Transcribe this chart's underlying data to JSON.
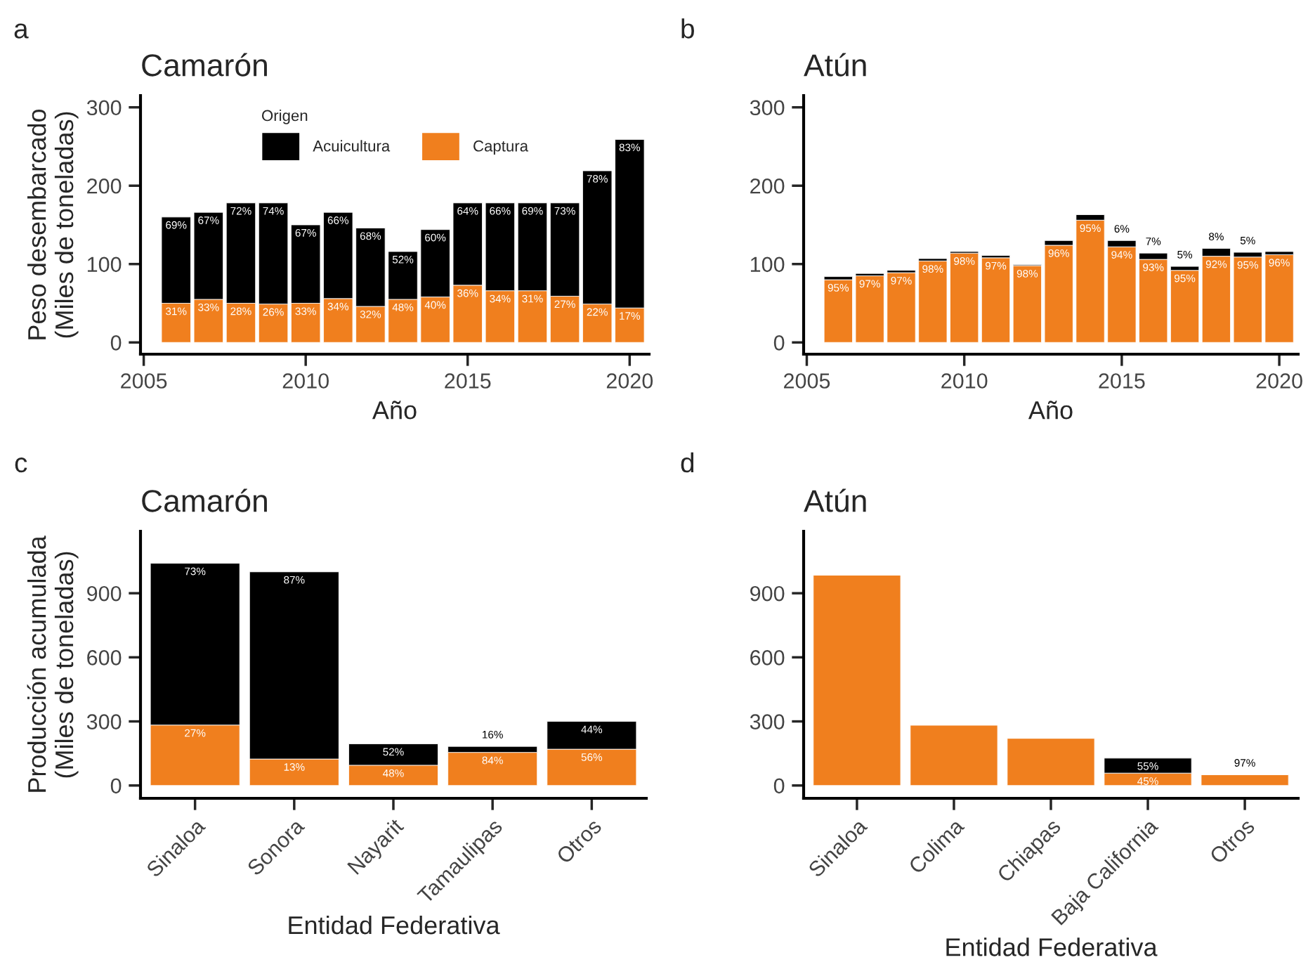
{
  "chart_data": [
    {
      "type": "bar",
      "title": "Camarón",
      "xlabel": "Año",
      "ylabel": "Peso desembarcado\n(Miles de toneladas)",
      "stacked": true,
      "legend": "top",
      "legend_title": "Origen",
      "grid": false,
      "x": [
        2006,
        2007,
        2008,
        2009,
        2010,
        2011,
        2012,
        2013,
        2014,
        2015,
        2016,
        2017,
        2018,
        2019,
        2020
      ],
      "xlim": [
        2004.9,
        2020.6
      ],
      "xticks": [
        2005,
        2010,
        2015,
        2020
      ],
      "ylim": [
        -15,
        315
      ],
      "yticks": [
        0,
        100,
        200,
        300
      ],
      "series": [
        {
          "name": "Captura",
          "color": "#f07f1e",
          "values": [
            50,
            55,
            50,
            49,
            50,
            56,
            46,
            55,
            58,
            73,
            66,
            66,
            59,
            49,
            44
          ]
        },
        {
          "name": "Acuicultura",
          "color": "#000000",
          "values": [
            110,
            111,
            128,
            129,
            100,
            110,
            100,
            61,
            86,
            105,
            112,
            112,
            119,
            170,
            215
          ]
        }
      ],
      "annotations": [
        "a",
        {
          "text": "31%",
          "x": 2006,
          "y": 50
        },
        {
          "text": "33%",
          "x": 2007,
          "y": 55
        },
        {
          "text": "28%",
          "x": 2008,
          "y": 50
        },
        {
          "text": "26%",
          "x": 2009,
          "y": 49
        },
        {
          "text": "33%",
          "x": 2010,
          "y": 50
        },
        {
          "text": "34%",
          "x": 2011,
          "y": 56
        },
        {
          "text": "32%",
          "x": 2012,
          "y": 46
        },
        {
          "text": "48%",
          "x": 2013,
          "y": 55
        },
        {
          "text": "40%",
          "x": 2014,
          "y": 58
        },
        {
          "text": "36%",
          "x": 2015,
          "y": 73
        },
        {
          "text": "34%",
          "x": 2016,
          "y": 66
        },
        {
          "text": "31%",
          "x": 2017,
          "y": 66
        },
        {
          "text": "27%",
          "x": 2018,
          "y": 59
        },
        {
          "text": "22%",
          "x": 2019,
          "y": 49
        },
        {
          "text": "17%",
          "x": 2020,
          "y": 44
        },
        {
          "text": "69%",
          "x": 2006,
          "y": 160
        },
        {
          "text": "67%",
          "x": 2007,
          "y": 166
        },
        {
          "text": "72%",
          "x": 2008,
          "y": 178
        },
        {
          "text": "74%",
          "x": 2009,
          "y": 178
        },
        {
          "text": "67%",
          "x": 2010,
          "y": 150
        },
        {
          "text": "66%",
          "x": 2011,
          "y": 166
        },
        {
          "text": "68%",
          "x": 2012,
          "y": 146
        },
        {
          "text": "52%",
          "x": 2013,
          "y": 116
        },
        {
          "text": "60%",
          "x": 2014,
          "y": 144
        },
        {
          "text": "64%",
          "x": 2015,
          "y": 178
        },
        {
          "text": "66%",
          "x": 2016,
          "y": 178
        },
        {
          "text": "69%",
          "x": 2017,
          "y": 178
        },
        {
          "text": "73%",
          "x": 2018,
          "y": 178
        },
        {
          "text": "78%",
          "x": 2019,
          "y": 219
        },
        {
          "text": "83%",
          "x": 2020,
          "y": 259
        }
      ]
    },
    {
      "type": "bar",
      "title": "Atún",
      "xlabel": "Año",
      "stacked": true,
      "grid": false,
      "x": [
        2006,
        2007,
        2008,
        2009,
        2010,
        2011,
        2012,
        2013,
        2014,
        2015,
        2016,
        2017,
        2018,
        2019,
        2020
      ],
      "xlim": [
        2004.9,
        2020.6
      ],
      "xticks": [
        2005,
        2010,
        2015,
        2020
      ],
      "ylim": [
        -15,
        315
      ],
      "yticks": [
        0,
        100,
        200,
        300
      ],
      "series": [
        {
          "color": "#f07f1e",
          "values": [
            80,
            85,
            89,
            104,
            114,
            108,
            98,
            124,
            156,
            122,
            106,
            92,
            110,
            109,
            112
          ]
        },
        {
          "color": "#000000",
          "values": [
            4,
            3,
            3,
            3,
            2,
            3,
            1,
            6,
            7,
            8,
            8,
            5,
            10,
            6,
            4
          ]
        }
      ],
      "annotations": [
        "b",
        {
          "text": "95%",
          "x": 2006,
          "y": 80
        },
        {
          "text": "97%",
          "x": 2007,
          "y": 85
        },
        {
          "text": "97%",
          "x": 2008,
          "y": 89
        },
        {
          "text": "98%",
          "x": 2009,
          "y": 104
        },
        {
          "text": "98%",
          "x": 2010,
          "y": 114
        },
        {
          "text": "97%",
          "x": 2011,
          "y": 108
        },
        {
          "text": "98%",
          "x": 2012,
          "y": 98
        },
        {
          "text": "96%",
          "x": 2013,
          "y": 124
        },
        {
          "text": "95%",
          "x": 2014,
          "y": 156
        },
        {
          "text": "94%",
          "x": 2015,
          "y": 122
        },
        {
          "text": "93%",
          "x": 2016,
          "y": 106
        },
        {
          "text": "95%",
          "x": 2017,
          "y": 92
        },
        {
          "text": "92%",
          "x": 2018,
          "y": 110
        },
        {
          "text": "95%",
          "x": 2019,
          "y": 109
        },
        {
          "text": "96%",
          "x": 2020,
          "y": 112
        },
        {
          "text": "6%",
          "x": 2015,
          "y": 130
        },
        {
          "text": "7%",
          "x": 2016,
          "y": 114
        },
        {
          "text": "5%",
          "x": 2017,
          "y": 97
        },
        {
          "text": "8%",
          "x": 2018,
          "y": 120
        },
        {
          "text": "5%",
          "x": 2019,
          "y": 115
        }
      ]
    },
    {
      "type": "bar",
      "title": "Camarón",
      "xlabel": "Entidad Federativa",
      "ylabel": "Producción acumulada\n(Miles de toneladas)",
      "stacked": true,
      "grid": false,
      "categories": [
        "Sinaloa",
        "Sonora",
        "Nayarit",
        "Tamaulipas",
        "Otros"
      ],
      "ylim": [
        -60,
        1190
      ],
      "yticks": [
        0,
        300,
        600,
        900
      ],
      "series": [
        {
          "color": "#f07f1e",
          "values": [
            283,
            124,
            95,
            155,
            170
          ]
        },
        {
          "color": "#000000",
          "values": [
            757,
            876,
            100,
            28,
            130
          ]
        }
      ],
      "annotations": [
        "c",
        {
          "text": "27%",
          "x": "Sinaloa",
          "y": 283
        },
        {
          "text": "13%",
          "x": "Sonora",
          "y": 124
        },
        {
          "text": "48%",
          "x": "Nayarit",
          "y": 95
        },
        {
          "text": "84%",
          "x": "Tamaulipas",
          "y": 155
        },
        {
          "text": "56%",
          "x": "Otros",
          "y": 170
        },
        {
          "text": "73%",
          "x": "Sinaloa",
          "y": 1040
        },
        {
          "text": "87%",
          "x": "Sonora",
          "y": 1000
        },
        {
          "text": "52%",
          "x": "Nayarit",
          "y": 195
        },
        {
          "text": "16%",
          "x": "Tamaulipas",
          "y": 183
        },
        {
          "text": "44%",
          "x": "Otros",
          "y": 300
        }
      ]
    },
    {
      "type": "bar",
      "title": "Atún",
      "xlabel": "Entidad Federativa",
      "stacked": true,
      "grid": false,
      "categories": [
        "Sinaloa",
        "Colima",
        "Chiapas",
        "Baja California",
        "Otros"
      ],
      "ylim": [
        -60,
        1190
      ],
      "yticks": [
        0,
        300,
        600,
        900
      ],
      "series": [
        {
          "color": "#f07f1e",
          "values": [
            985,
            283,
            221,
            58,
            51
          ]
        },
        {
          "color": "#000000",
          "values": [
            null,
            null,
            null,
            70,
            null
          ]
        }
      ],
      "annotations": [
        "d",
        {
          "text": "45%",
          "x": "Baja California",
          "y": 58
        },
        {
          "text": "55%",
          "x": "Baja California",
          "y": 128
        },
        {
          "text": "97%",
          "x": "Otros",
          "y": 51
        }
      ]
    }
  ]
}
